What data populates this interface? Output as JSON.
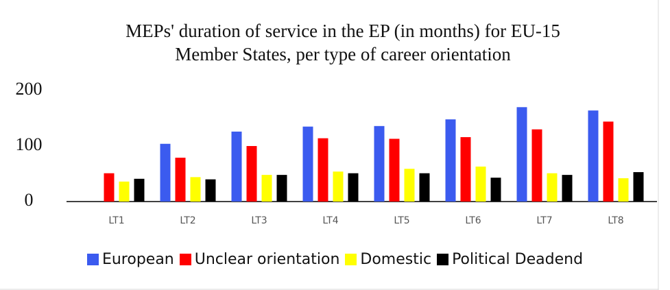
{
  "chart_data": {
    "type": "bar",
    "title": "MEPs' duration of service in the EP (in months) for EU-15 Member States, per type of career orientation",
    "categories": [
      "LT1",
      "LT2",
      "LT3",
      "LT4",
      "LT5",
      "LT6",
      "LT7",
      "LT8"
    ],
    "series": [
      {
        "name": "European",
        "color": "#3b5bef",
        "values": [
          0,
          104,
          126,
          135,
          136,
          148,
          170,
          164
        ]
      },
      {
        "name": "Unclear orientation",
        "color": "#ff0000",
        "values": [
          51,
          79,
          100,
          114,
          113,
          116,
          130,
          144
        ]
      },
      {
        "name": "Domestic",
        "color": "#ffff00",
        "values": [
          36,
          44,
          48,
          54,
          59,
          63,
          51,
          42
        ]
      },
      {
        "name": "Political Deadend",
        "color": "#000000",
        "values": [
          41,
          40,
          48,
          51,
          51,
          43,
          48,
          53
        ]
      }
    ],
    "ylim": [
      0,
      200
    ],
    "yticks": [
      0,
      100,
      200
    ],
    "grid": false,
    "legend": "bottom"
  }
}
